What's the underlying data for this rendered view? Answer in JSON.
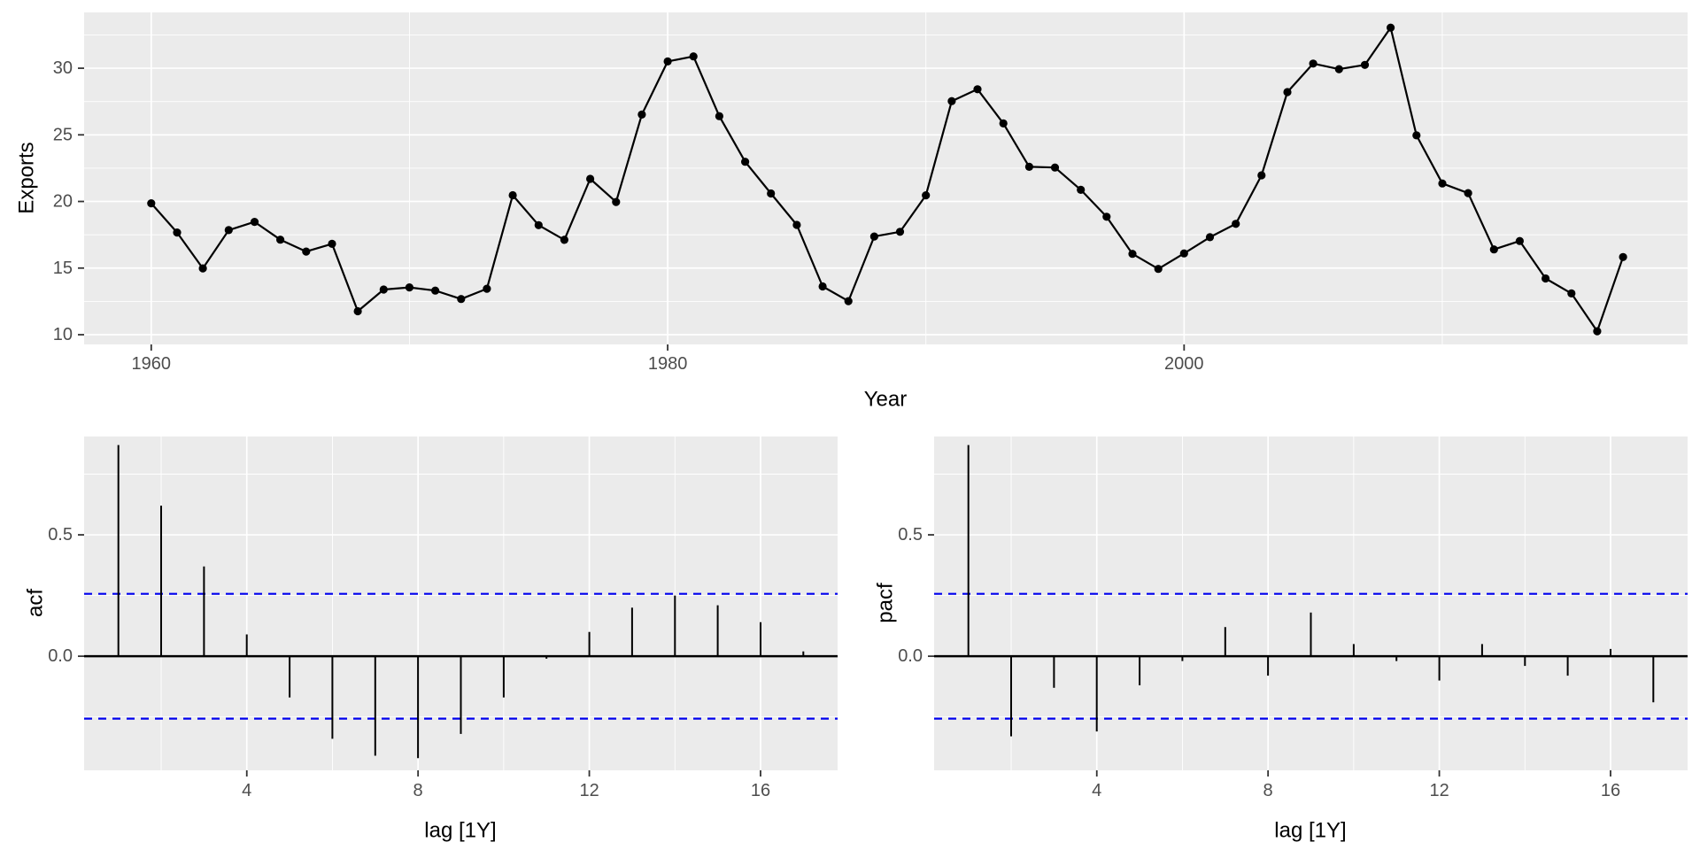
{
  "figure": {
    "kind": "gg_tsdisplay",
    "colors": {
      "background": "#FFFFFF",
      "panel": "#EBEBEB",
      "grid": "#FFFFFF",
      "series": "#000000",
      "significance": "#0000EE",
      "axis_text": "#4D4D4D",
      "axis_title": "#000000",
      "tick_mark": "#333333"
    }
  },
  "chart_data": [
    {
      "id": "exports-time-plot",
      "type": "line",
      "title": "",
      "xlabel": "Year",
      "ylabel": "Exports",
      "marker": "point",
      "grid": true,
      "legend": "none",
      "x": [
        1960,
        1961,
        1962,
        1963,
        1964,
        1965,
        1966,
        1967,
        1968,
        1969,
        1970,
        1971,
        1972,
        1973,
        1974,
        1975,
        1976,
        1977,
        1978,
        1979,
        1980,
        1981,
        1982,
        1983,
        1984,
        1985,
        1986,
        1987,
        1988,
        1989,
        1990,
        1991,
        1992,
        1993,
        1994,
        1995,
        1996,
        1997,
        1998,
        1999,
        2000,
        2001,
        2002,
        2003,
        2004,
        2005,
        2006,
        2007,
        2008,
        2009,
        2010,
        2011,
        2012,
        2013,
        2014,
        2015,
        2016,
        2017
      ],
      "values": [
        19.86,
        17.67,
        14.98,
        17.85,
        18.47,
        17.13,
        16.24,
        16.82,
        11.76,
        13.39,
        13.55,
        13.31,
        12.68,
        13.45,
        20.47,
        18.22,
        17.12,
        21.7,
        19.96,
        26.52,
        30.51,
        30.89,
        26.4,
        22.98,
        20.6,
        18.24,
        13.62,
        12.52,
        17.37,
        17.72,
        20.46,
        27.53,
        28.42,
        25.86,
        22.6,
        22.55,
        20.87,
        18.85,
        16.07,
        14.94,
        16.1,
        17.32,
        18.32,
        21.96,
        28.21,
        30.35,
        29.93,
        30.25,
        33.05,
        24.96,
        21.35,
        20.63,
        16.4,
        17.03,
        14.22,
        13.1,
        10.26,
        15.83
      ],
      "x_ticks": {
        "values": [
          1960,
          1980,
          2000
        ],
        "labels": [
          "1960",
          "1980",
          "2000"
        ]
      },
      "x_minor": [
        1970,
        1990,
        2010
      ],
      "y_ticks": {
        "values": [
          10,
          15,
          20,
          25,
          30
        ],
        "labels": [
          "10",
          "15",
          "20",
          "25",
          "30"
        ]
      },
      "y_minor": [
        12.5,
        17.5,
        22.5,
        27.5,
        32.5
      ],
      "xlim": [
        1957.4,
        2019.5
      ],
      "ylim": [
        9.27,
        34.19
      ]
    },
    {
      "id": "acf-plot",
      "type": "bar",
      "title": "",
      "xlabel": "lag [1Y]",
      "ylabel": "acf",
      "grid": true,
      "legend": "none",
      "x": [
        1,
        2,
        3,
        4,
        5,
        6,
        7,
        8,
        9,
        10,
        11,
        12,
        13,
        14,
        15,
        16,
        17
      ],
      "values": [
        0.87,
        0.62,
        0.37,
        0.09,
        -0.17,
        -0.34,
        -0.41,
        -0.42,
        -0.32,
        -0.17,
        -0.01,
        0.1,
        0.2,
        0.25,
        0.21,
        0.14,
        0.02
      ],
      "significance_bound": 0.257,
      "x_ticks": {
        "values": [
          4,
          8,
          12,
          16
        ],
        "labels": [
          "4",
          "8",
          "12",
          "16"
        ]
      },
      "x_minor": [
        2,
        6,
        10,
        14
      ],
      "y_ticks": {
        "values": [
          0,
          0.5
        ],
        "labels": [
          "0.0",
          "0.5"
        ]
      },
      "y_minor": [
        -0.25,
        0.25,
        0.75
      ],
      "xlim": [
        0.2,
        17.8
      ],
      "ylim": [
        -0.47,
        0.905
      ]
    },
    {
      "id": "pacf-plot",
      "type": "bar",
      "title": "",
      "xlabel": "lag [1Y]",
      "ylabel": "pacf",
      "grid": true,
      "legend": "none",
      "x": [
        1,
        2,
        3,
        4,
        5,
        6,
        7,
        8,
        9,
        10,
        11,
        12,
        13,
        14,
        15,
        16,
        17
      ],
      "values": [
        0.87,
        -0.33,
        -0.13,
        -0.31,
        -0.12,
        -0.02,
        0.12,
        -0.08,
        0.18,
        0.05,
        -0.02,
        -0.1,
        0.05,
        -0.04,
        -0.08,
        0.03,
        -0.19
      ],
      "significance_bound": 0.257,
      "x_ticks": {
        "values": [
          4,
          8,
          12,
          16
        ],
        "labels": [
          "4",
          "8",
          "12",
          "16"
        ]
      },
      "x_minor": [
        2,
        6,
        10,
        14
      ],
      "y_ticks": {
        "values": [
          0,
          0.5
        ],
        "labels": [
          "0.0",
          "0.5"
        ]
      },
      "y_minor": [
        -0.25,
        0.25,
        0.75
      ],
      "xlim": [
        0.2,
        17.8
      ],
      "ylim": [
        -0.47,
        0.905
      ]
    }
  ]
}
